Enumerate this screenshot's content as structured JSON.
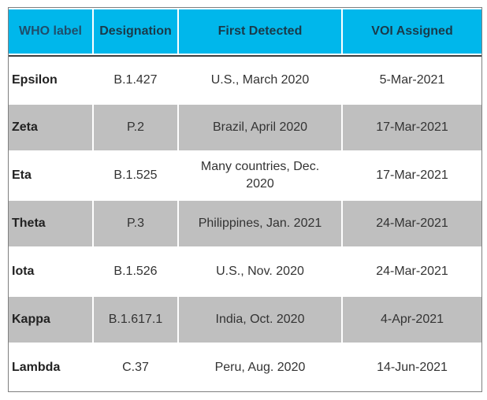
{
  "table": {
    "headers": [
      "WHO label",
      "Designation",
      "First Detected",
      "VOI Assigned"
    ],
    "rows": [
      [
        "Epsilon",
        "B.1.427",
        "U.S., March 2020",
        "5-Mar-2021"
      ],
      [
        "Zeta",
        "P.2",
        "Brazil, April 2020",
        "17-Mar-2021"
      ],
      [
        "Eta",
        "B.1.525",
        "Many countries, Dec. 2020",
        "17-Mar-2021"
      ],
      [
        "Theta",
        "P.3",
        "Philippines, Jan. 2021",
        "24-Mar-2021"
      ],
      [
        "Iota",
        "B.1.526",
        "U.S., Nov. 2020",
        "24-Mar-2021"
      ],
      [
        "Kappa",
        "B.1.617.1",
        "India, Oct. 2020",
        "4-Apr-2021"
      ],
      [
        "Lambda",
        "C.37",
        "Peru, Aug. 2020",
        "14-Jun-2021"
      ]
    ],
    "colors": {
      "header_bg": "#00b7eb",
      "shaded_row_bg": "#bfbfbf",
      "border": "#7f7f7f"
    }
  }
}
